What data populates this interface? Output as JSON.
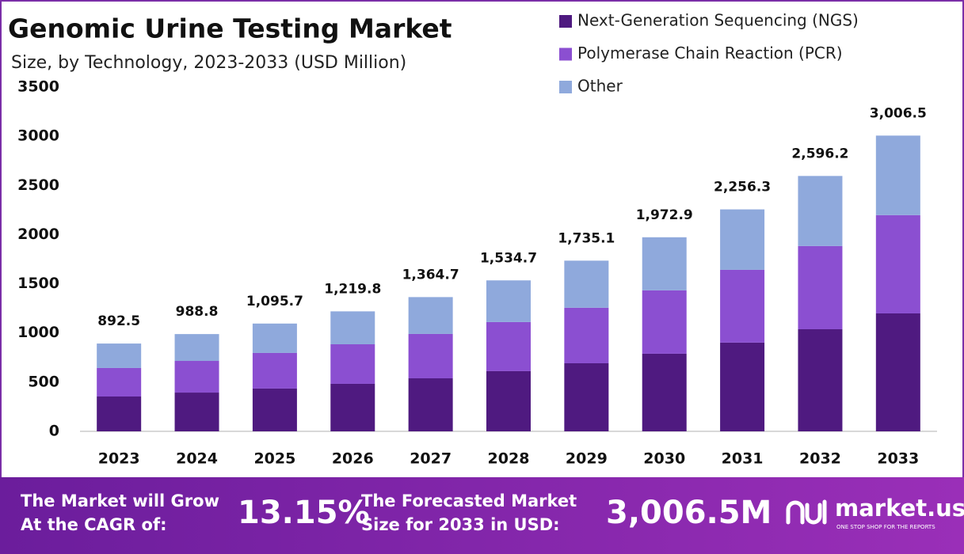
{
  "chart_data": {
    "type": "stacked_bar",
    "title": "Genomic Urine Testing Market",
    "subtitle": "Size, by Technology, 2023-2033 (USD Million)",
    "categories": [
      "2023",
      "2024",
      "2025",
      "2026",
      "2027",
      "2028",
      "2029",
      "2030",
      "2031",
      "2032",
      "2033"
    ],
    "series": [
      {
        "name": "Next-Generation Sequencing (NGS)",
        "color": "#4f1a80",
        "values": [
          354,
          394,
          435,
          483,
          539,
          612,
          692,
          789,
          902,
          1038,
          1199
        ]
      },
      {
        "name": "Polymerase Chain Reaction (PCR)",
        "color": "#8b4fd1",
        "values": [
          290,
          322,
          362,
          402,
          451,
          499,
          564,
          644,
          740,
          846,
          999
        ]
      },
      {
        "name": "Other",
        "color": "#8fa9dc",
        "values": [
          248.5,
          272.8,
          298.7,
          334.8,
          374.7,
          423.7,
          479.1,
          539.9,
          614.3,
          712.2,
          808.5
        ]
      }
    ],
    "totals": [
      892.5,
      988.8,
      1095.7,
      1219.8,
      1364.7,
      1534.7,
      1735.1,
      1972.9,
      2256.3,
      2596.2,
      3006.5
    ],
    "total_labels": [
      "892.5",
      "988.8",
      "1,095.7",
      "1,219.8",
      "1,364.7",
      "1,534.7",
      "1,735.1",
      "1,972.9",
      "2,256.3",
      "2,596.2",
      "3,006.5"
    ],
    "ylim": [
      0,
      3500
    ],
    "yticks": [
      0,
      500,
      1000,
      1500,
      2000,
      2500,
      3000,
      3500
    ],
    "grid": false
  },
  "footer": {
    "cagr_text": [
      "The Market will Grow",
      "At the CAGR of:"
    ],
    "cagr": "13.15%",
    "forecast_text": [
      "The Forecasted Market",
      "Size for 2033 in USD:"
    ],
    "forecast": "3,006.5M",
    "brand": "market.us",
    "tagline": "ONE STOP SHOP FOR THE REPORTS"
  }
}
